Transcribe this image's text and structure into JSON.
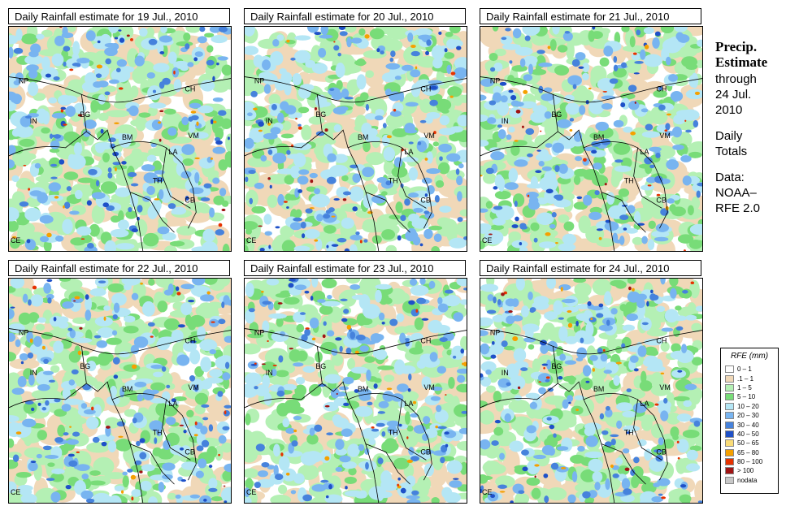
{
  "panels": [
    {
      "title": "Daily Rainfall estimate for  19 Jul., 2010",
      "seed": 11
    },
    {
      "title": "Daily Rainfall estimate for  20 Jul., 2010",
      "seed": 23
    },
    {
      "title": "Daily Rainfall estimate for  21 Jul., 2010",
      "seed": 37
    },
    {
      "title": "Daily Rainfall estimate for  22 Jul., 2010",
      "seed": 41
    },
    {
      "title": "Daily Rainfall estimate for  23 Jul., 2010",
      "seed": 53
    },
    {
      "title": "Daily Rainfall estimate for  24 Jul., 2010",
      "seed": 67
    }
  ],
  "map_labels": [
    "NP",
    "IN",
    "BG",
    "CH",
    "BM",
    "VM",
    "LA",
    "TH",
    "CB",
    "CE"
  ],
  "sidebar": {
    "heading1": "Precip.",
    "heading2": "Estimate",
    "line1": "through",
    "line2": "24 Jul.",
    "line3": "2010",
    "line4": "Daily",
    "line5": "Totals",
    "line6": "Data:",
    "line7": "NOAA–",
    "line8": "RFE 2.0"
  },
  "legend": {
    "title": "RFE (mm)",
    "items": [
      {
        "label": "0 – 1",
        "color": "#ffffff"
      },
      {
        "label": ".1 – 1",
        "color": "#f0d8b8"
      },
      {
        "label": "1 – 5",
        "color": "#b4f0b4"
      },
      {
        "label": "5 – 10",
        "color": "#78dc78"
      },
      {
        "label": "10 – 20",
        "color": "#b4e6f5"
      },
      {
        "label": "20 – 30",
        "color": "#78b4f0"
      },
      {
        "label": "30 – 40",
        "color": "#4682dc"
      },
      {
        "label": "40 – 50",
        "color": "#1e50c8"
      },
      {
        "label": "50 – 65",
        "color": "#fadc78"
      },
      {
        "label": "65 – 80",
        "color": "#f5a000"
      },
      {
        "label": "80 – 100",
        "color": "#e63200"
      },
      {
        "label": "> 100",
        "color": "#a01414"
      },
      {
        "label": "nodata",
        "color": "#c8c8c8"
      }
    ]
  }
}
